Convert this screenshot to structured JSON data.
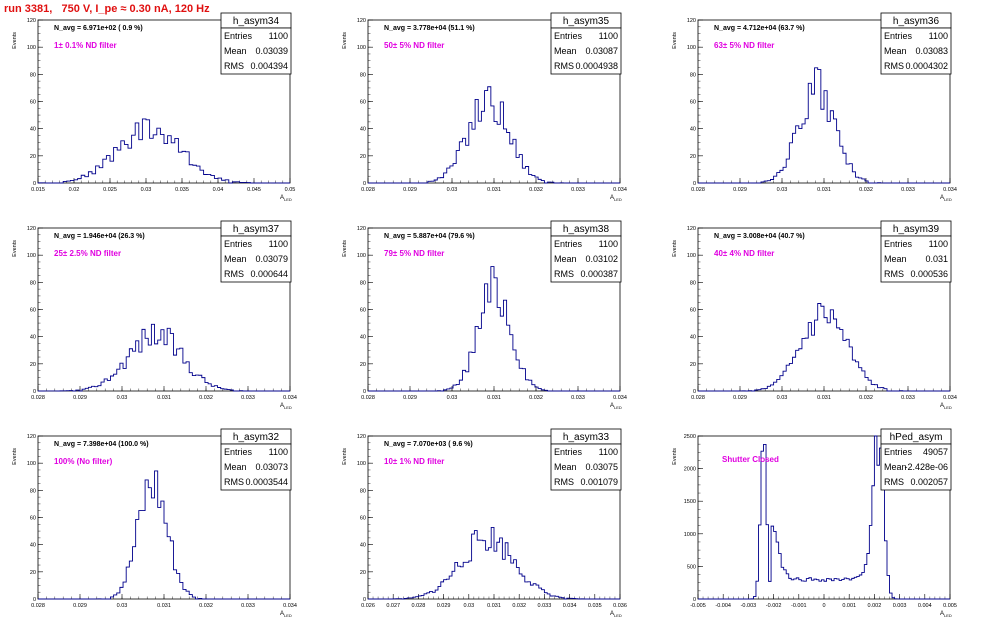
{
  "title": "run 3381,   750 V, I_pe ≈ 0.30 nA, 120 Hz",
  "ylabel": "Events",
  "xlabel": "A",
  "xlabel_sub": "LED",
  "chart_data": [
    {
      "type": "bar",
      "name": "h_asym34",
      "nlabel": "N_avg = 6.971e+02 ( 0.9 %)",
      "filter": "1± 0.1% ND filter",
      "stats": {
        "Entries": "1100",
        "Mean": "0.03039",
        "RMS": "0.004394"
      },
      "xlim": [
        0.015,
        0.05
      ],
      "ylim": [
        0,
        120
      ],
      "xticks": [
        "0.015",
        "0.02",
        "0.025",
        "0.03",
        "0.035",
        "0.04",
        "0.045",
        "0.05"
      ],
      "yticks": [
        "0",
        "20",
        "40",
        "60",
        "80",
        "100",
        "120"
      ],
      "bins": {
        "center": 0.0304,
        "sigma": 0.0044,
        "peak": 40,
        "nbins": 70,
        "seed": 34
      }
    },
    {
      "type": "bar",
      "name": "h_asym35",
      "nlabel": "N_avg = 3.778e+04 (51.1 %)",
      "filter": "50± 5% ND filter",
      "stats": {
        "Entries": "1100",
        "Mean": "0.03087",
        "RMS": "0.0004938"
      },
      "xlim": [
        0.028,
        0.034
      ],
      "ylim": [
        0,
        120
      ],
      "xticks": [
        "0.028",
        "0.029",
        "0.03",
        "0.031",
        "0.032",
        "0.033",
        "0.034"
      ],
      "yticks": [
        "0",
        "20",
        "40",
        "60",
        "80",
        "100",
        "120"
      ],
      "bins": {
        "center": 0.03087,
        "sigma": 0.00049,
        "peak": 62,
        "nbins": 80,
        "seed": 35
      }
    },
    {
      "type": "bar",
      "name": "h_asym36",
      "nlabel": "N_avg = 4.712e+04 (63.7 %)",
      "filter": "63± 5% ND filter",
      "stats": {
        "Entries": "1100",
        "Mean": "0.03083",
        "RMS": "0.0004302"
      },
      "xlim": [
        0.028,
        0.034
      ],
      "ylim": [
        0,
        120
      ],
      "xticks": [
        "0.028",
        "0.029",
        "0.03",
        "0.031",
        "0.032",
        "0.033",
        "0.034"
      ],
      "yticks": [
        "0",
        "20",
        "40",
        "60",
        "80",
        "100",
        "120"
      ],
      "bins": {
        "center": 0.03083,
        "sigma": 0.00043,
        "peak": 68,
        "nbins": 80,
        "seed": 36
      }
    },
    {
      "type": "bar",
      "name": "h_asym37",
      "nlabel": "N_avg = 1.946e+04 (26.3 %)",
      "filter": "25± 2.5% ND filter",
      "stats": {
        "Entries": "1100",
        "Mean": "0.03079",
        "RMS": "0.000644"
      },
      "xlim": [
        0.028,
        0.034
      ],
      "ylim": [
        0,
        120
      ],
      "xticks": [
        "0.028",
        "0.029",
        "0.03",
        "0.031",
        "0.032",
        "0.033",
        "0.034"
      ],
      "yticks": [
        "0",
        "20",
        "40",
        "60",
        "80",
        "100",
        "120"
      ],
      "bins": {
        "center": 0.03079,
        "sigma": 0.00064,
        "peak": 42,
        "nbins": 80,
        "seed": 37
      }
    },
    {
      "type": "bar",
      "name": "h_asym38",
      "nlabel": "N_avg = 5.887e+04 (79.6 %)",
      "filter": "79± 5% ND filter",
      "stats": {
        "Entries": "1100",
        "Mean": "0.03102",
        "RMS": "0.000387"
      },
      "xlim": [
        0.028,
        0.034
      ],
      "ylim": [
        0,
        120
      ],
      "xticks": [
        "0.028",
        "0.029",
        "0.03",
        "0.031",
        "0.032",
        "0.033",
        "0.034"
      ],
      "yticks": [
        "0",
        "20",
        "40",
        "60",
        "80",
        "100",
        "120"
      ],
      "bins": {
        "center": 0.03102,
        "sigma": 0.00039,
        "peak": 75,
        "nbins": 80,
        "seed": 38
      }
    },
    {
      "type": "bar",
      "name": "h_asym39",
      "nlabel": "N_avg = 3.008e+04 (40.7 %)",
      "filter": "40± 4% ND filter",
      "stats": {
        "Entries": "1100",
        "Mean": "0.031",
        "RMS": "0.000536"
      },
      "xlim": [
        0.028,
        0.034
      ],
      "ylim": [
        0,
        120
      ],
      "xticks": [
        "0.028",
        "0.029",
        "0.03",
        "0.031",
        "0.032",
        "0.033",
        "0.034"
      ],
      "yticks": [
        "0",
        "20",
        "40",
        "60",
        "80",
        "100",
        "120"
      ],
      "bins": {
        "center": 0.031,
        "sigma": 0.00054,
        "peak": 55,
        "nbins": 80,
        "seed": 39
      }
    },
    {
      "type": "bar",
      "name": "h_asym32",
      "nlabel": "N_avg = 7.398e+04 (100.0 %)",
      "filter": "100% (No filter)",
      "stats": {
        "Entries": "1100",
        "Mean": "0.03073",
        "RMS": "0.0003544"
      },
      "xlim": [
        0.028,
        0.034
      ],
      "ylim": [
        0,
        120
      ],
      "xticks": [
        "0.028",
        "0.029",
        "0.03",
        "0.031",
        "0.032",
        "0.033",
        "0.034"
      ],
      "yticks": [
        "0",
        "20",
        "40",
        "60",
        "80",
        "100",
        "120"
      ],
      "bins": {
        "center": 0.03073,
        "sigma": 0.00035,
        "peak": 85,
        "nbins": 80,
        "seed": 32
      }
    },
    {
      "type": "bar",
      "name": "h_asym33",
      "nlabel": "N_avg = 7.070e+03 ( 9.6 %)",
      "filter": "10± 1% ND filter",
      "stats": {
        "Entries": "1100",
        "Mean": "0.03075",
        "RMS": "0.001079"
      },
      "xlim": [
        0.026,
        0.036
      ],
      "ylim": [
        0,
        120
      ],
      "xticks": [
        "0.026",
        "0.027",
        "0.028",
        "0.029",
        "0.03",
        "0.031",
        "0.032",
        "0.033",
        "0.034",
        "0.035",
        "0.036"
      ],
      "yticks": [
        "0",
        "20",
        "40",
        "60",
        "80",
        "100",
        "120"
      ],
      "bins": {
        "center": 0.03075,
        "sigma": 0.00108,
        "peak": 45,
        "nbins": 90,
        "seed": 33
      }
    },
    {
      "type": "bar",
      "name": "hPed_asym",
      "nlabel": "",
      "filter": "Shutter Closed",
      "stats": {
        "Entries": "49057",
        "Mean": "-2.428e-06",
        "RMS": "0.002057"
      },
      "xlim": [
        -0.005,
        0.005
      ],
      "ylim": [
        0,
        2500
      ],
      "xticks": [
        "-0.005",
        "-0.004",
        "-0.003",
        "-0.002",
        "-0.001",
        "0",
        "0.001",
        "0.002",
        "0.003",
        "0.004",
        "0.005"
      ],
      "yticks": [
        "0",
        "500",
        "1000",
        "1500",
        "2000",
        "2500"
      ],
      "bins": {
        "center": 0,
        "sigma": 0.002,
        "peak": 2400,
        "nbins": 100,
        "seed": 99,
        "bimodal": true
      }
    }
  ],
  "colors": {
    "title": "#e01010",
    "filter": "#e000e0",
    "hist": "#00008b",
    "frame": "#000000"
  }
}
